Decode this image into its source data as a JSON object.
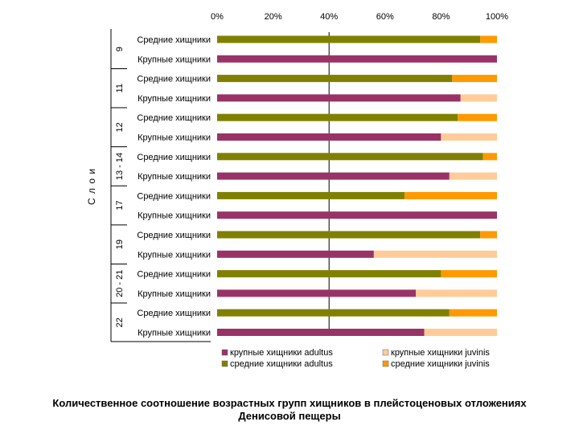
{
  "chart_data": {
    "type": "bar",
    "orientation": "horizontal",
    "stacked": "percent",
    "xlim": [
      0,
      100
    ],
    "x_tick_labels": [
      "0%",
      "20%",
      "40%",
      "60%",
      "80%",
      "100%"
    ],
    "ylabel": "С л о и",
    "grid": "vertical line at 40%",
    "legend_position": "bottom",
    "groups": [
      {
        "layer": "9",
        "rows": [
          {
            "category": "Средние хищники",
            "adult": 94,
            "juv": 6
          },
          {
            "category": "Крупные хищники",
            "adult": 100,
            "juv": 0
          }
        ]
      },
      {
        "layer": "11",
        "rows": [
          {
            "category": "Средние хищники",
            "adult": 84,
            "juv": 16
          },
          {
            "category": "Крупные хищники",
            "adult": 87,
            "juv": 13
          }
        ]
      },
      {
        "layer": "12",
        "rows": [
          {
            "category": "Средние хищники",
            "adult": 86,
            "juv": 14
          },
          {
            "category": "Крупные хищники",
            "adult": 80,
            "juv": 20
          }
        ]
      },
      {
        "layer": "13 - 14",
        "rows": [
          {
            "category": "Средние хищники",
            "adult": 95,
            "juv": 5
          },
          {
            "category": "Крупные хищники",
            "adult": 83,
            "juv": 17
          }
        ]
      },
      {
        "layer": "17",
        "rows": [
          {
            "category": "Средние хищники",
            "adult": 67,
            "juv": 33
          },
          {
            "category": "Крупные хищники",
            "adult": 100,
            "juv": 0
          }
        ]
      },
      {
        "layer": "19",
        "rows": [
          {
            "category": "Средние хищники",
            "adult": 94,
            "juv": 6
          },
          {
            "category": "Крупные хищники",
            "adult": 56,
            "juv": 44
          }
        ]
      },
      {
        "layer": "20 - 21",
        "rows": [
          {
            "category": "Средние хищники",
            "adult": 80,
            "juv": 20
          },
          {
            "category": "Крупные хищники",
            "adult": 71,
            "juv": 29
          }
        ]
      },
      {
        "layer": "22",
        "rows": [
          {
            "category": "Средние хищники",
            "adult": 83,
            "juv": 17
          },
          {
            "category": "Крупные хищники",
            "adult": 74,
            "juv": 26
          }
        ]
      }
    ],
    "legend": [
      {
        "key": "large_adult",
        "label": "крупные хищники adultus"
      },
      {
        "key": "large_juv",
        "label": "крупные хищники juvinis"
      },
      {
        "key": "medium_adult",
        "label": "средние хищники adultus"
      },
      {
        "key": "medium_juv",
        "label": "средние хищники juvinis"
      }
    ],
    "colors": {
      "large_adult": "#993366",
      "large_juv": "#FFCC99",
      "medium_adult": "#808000",
      "medium_juv": "#FF9900"
    }
  },
  "caption": {
    "line1": "Количественное соотношение возрастных групп хищников в плейстоценовых отложениях",
    "line2": "Денисовой пещеры"
  }
}
